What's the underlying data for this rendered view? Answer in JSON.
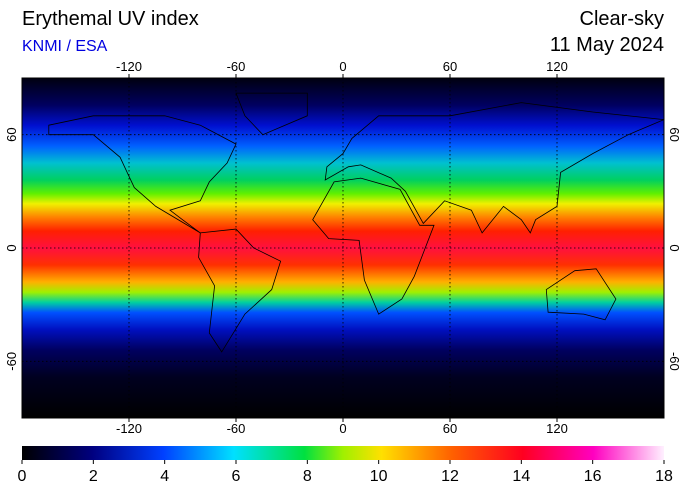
{
  "header": {
    "title": "Erythemal UV index",
    "source": "KNMI / ESA",
    "condition": "Clear-sky",
    "date": "11 May 2024"
  },
  "map": {
    "lonlim": [
      -180,
      180
    ],
    "latlim": [
      -90,
      90
    ],
    "lon_ticks": [
      -120,
      -60,
      0,
      60,
      120
    ],
    "lat_ticks": [
      60,
      0,
      -60
    ]
  },
  "colorbar": {
    "lim": [
      0,
      18
    ],
    "ticks": [
      0,
      2,
      4,
      6,
      8,
      10,
      12,
      14,
      16,
      18
    ]
  }
}
